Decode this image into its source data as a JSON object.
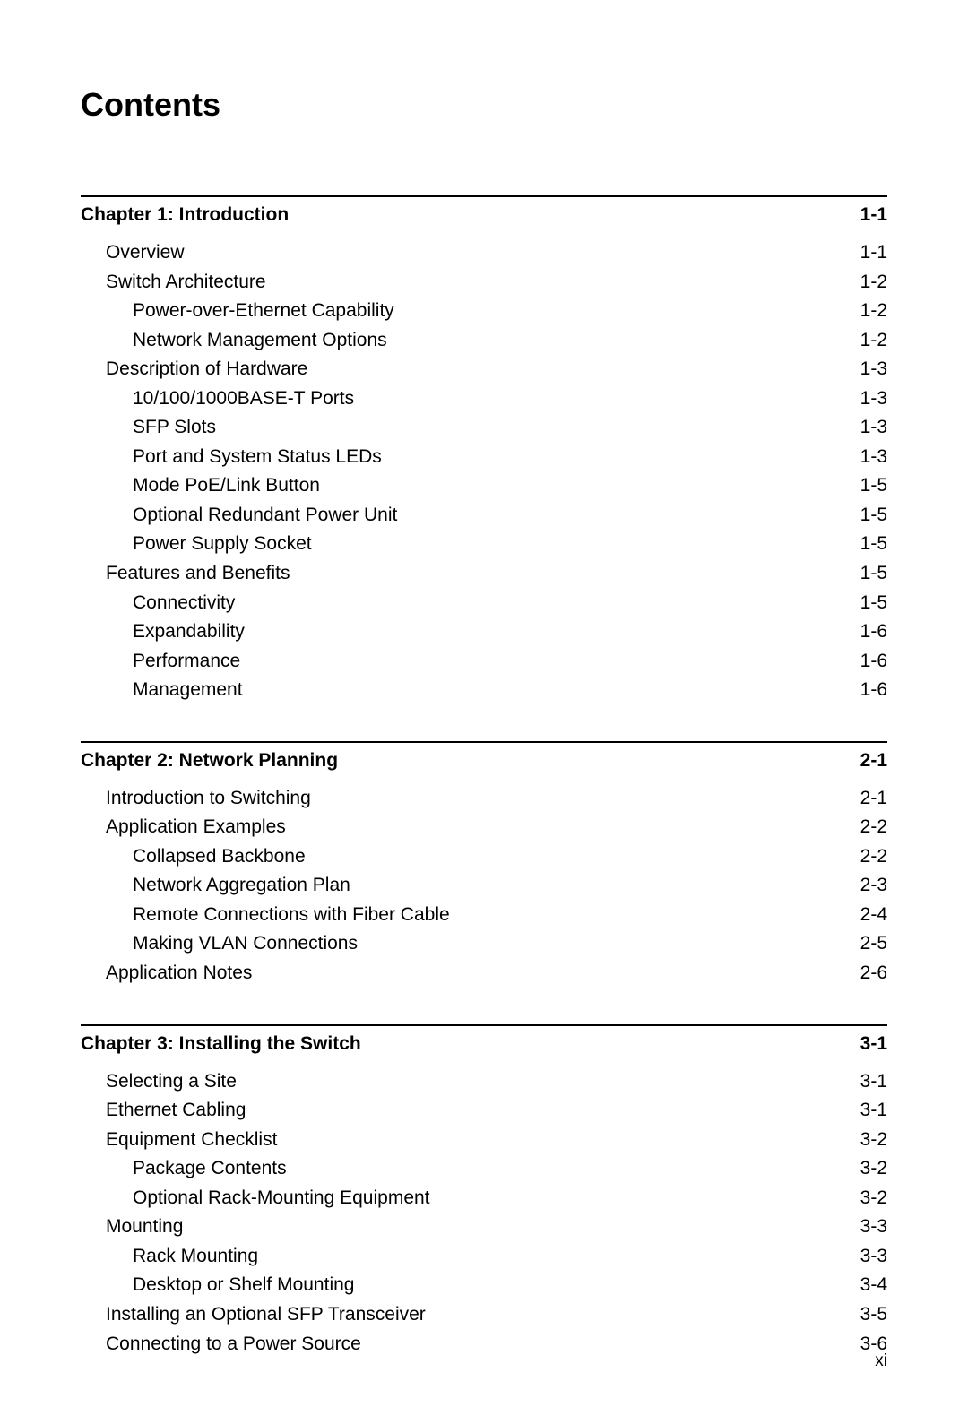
{
  "title": "Contents",
  "footer_page": "xi",
  "chapters": [
    {
      "title": "Chapter 1: Introduction",
      "page": "1-1",
      "entries": [
        {
          "label": "Overview",
          "page": "1-1",
          "indent": 1
        },
        {
          "label": "Switch Architecture",
          "page": "1-2",
          "indent": 1
        },
        {
          "label": "Power-over-Ethernet Capability",
          "page": "1-2",
          "indent": 2
        },
        {
          "label": "Network Management Options",
          "page": "1-2",
          "indent": 2
        },
        {
          "label": "Description of Hardware",
          "page": "1-3",
          "indent": 1
        },
        {
          "label": "10/100/1000BASE-T Ports",
          "page": "1-3",
          "indent": 2
        },
        {
          "label": "SFP Slots",
          "page": "1-3",
          "indent": 2
        },
        {
          "label": "Port and System Status LEDs",
          "page": "1-3",
          "indent": 2
        },
        {
          "label": "Mode PoE/Link Button",
          "page": "1-5",
          "indent": 2
        },
        {
          "label": "Optional Redundant Power Unit",
          "page": "1-5",
          "indent": 2
        },
        {
          "label": "Power Supply Socket",
          "page": "1-5",
          "indent": 2
        },
        {
          "label": "Features and Benefits",
          "page": "1-5",
          "indent": 1
        },
        {
          "label": "Connectivity",
          "page": "1-5",
          "indent": 2
        },
        {
          "label": "Expandability",
          "page": "1-6",
          "indent": 2
        },
        {
          "label": "Performance",
          "page": "1-6",
          "indent": 2
        },
        {
          "label": "Management",
          "page": "1-6",
          "indent": 2
        }
      ]
    },
    {
      "title": "Chapter 2: Network Planning",
      "page": "2-1",
      "entries": [
        {
          "label": "Introduction to Switching",
          "page": "2-1",
          "indent": 1
        },
        {
          "label": "Application Examples",
          "page": "2-2",
          "indent": 1
        },
        {
          "label": "Collapsed Backbone",
          "page": "2-2",
          "indent": 2
        },
        {
          "label": "Network Aggregation Plan",
          "page": "2-3",
          "indent": 2
        },
        {
          "label": "Remote Connections with Fiber Cable",
          "page": "2-4",
          "indent": 2
        },
        {
          "label": "Making VLAN Connections",
          "page": "2-5",
          "indent": 2
        },
        {
          "label": "Application Notes",
          "page": "2-6",
          "indent": 1
        }
      ]
    },
    {
      "title": "Chapter 3: Installing the Switch",
      "page": "3-1",
      "entries": [
        {
          "label": "Selecting a Site",
          "page": "3-1",
          "indent": 1
        },
        {
          "label": "Ethernet Cabling",
          "page": "3-1",
          "indent": 1
        },
        {
          "label": "Equipment Checklist",
          "page": "3-2",
          "indent": 1
        },
        {
          "label": "Package Contents",
          "page": "3-2",
          "indent": 2
        },
        {
          "label": "Optional Rack-Mounting Equipment",
          "page": "3-2",
          "indent": 2
        },
        {
          "label": "Mounting",
          "page": "3-3",
          "indent": 1
        },
        {
          "label": "Rack Mounting",
          "page": "3-3",
          "indent": 2
        },
        {
          "label": "Desktop or Shelf Mounting",
          "page": "3-4",
          "indent": 2
        },
        {
          "label": "Installing an Optional SFP Transceiver",
          "page": "3-5",
          "indent": 1
        },
        {
          "label": "Connecting to a Power Source",
          "page": "3-6",
          "indent": 1
        }
      ]
    }
  ]
}
